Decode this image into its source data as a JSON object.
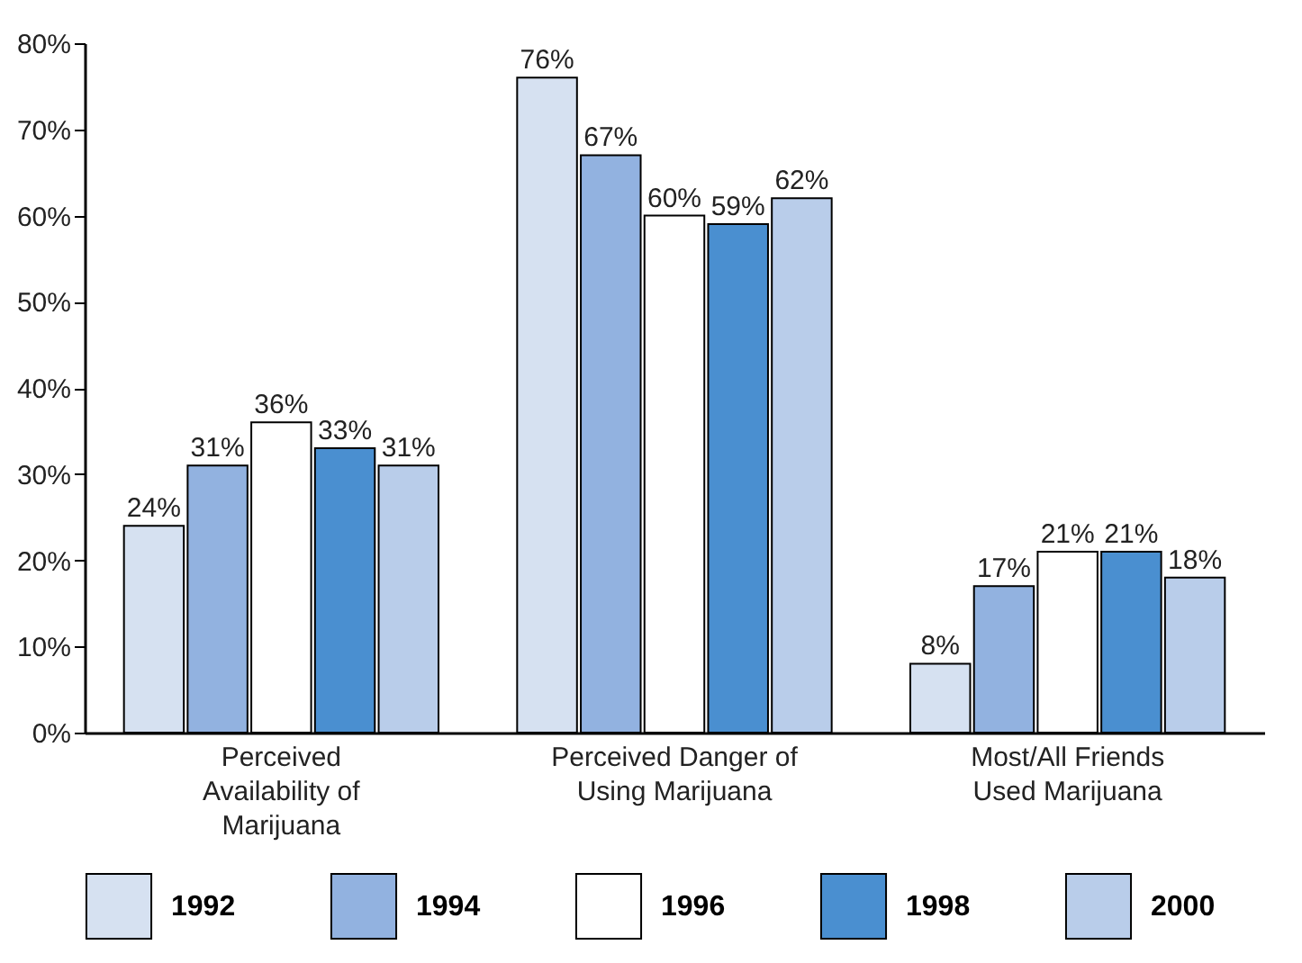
{
  "chart_data": {
    "type": "bar",
    "categories": [
      "Perceived Availability of Marijuana",
      "Perceived Danger of Using Marijuana",
      "Most/All Friends Used Marijuana"
    ],
    "series": [
      {
        "name": "1992",
        "color": "#d6e1f1",
        "values": [
          24,
          76,
          8
        ],
        "value_labels": [
          "24%",
          "76%",
          "8%"
        ]
      },
      {
        "name": "1994",
        "color": "#92b2e0",
        "values": [
          31,
          67,
          17
        ],
        "value_labels": [
          "31%",
          "67%",
          "17%"
        ]
      },
      {
        "name": "1996",
        "color": "#ffffff",
        "values": [
          36,
          60,
          21
        ],
        "value_labels": [
          "36%",
          "60%",
          "21%"
        ]
      },
      {
        "name": "1998",
        "color": "#4a8fd0",
        "values": [
          33,
          59,
          21
        ],
        "value_labels": [
          "33%",
          "59%",
          "21%"
        ]
      },
      {
        "name": "2000",
        "color": "#b9cdea",
        "values": [
          31,
          62,
          18
        ],
        "value_labels": [
          "31%",
          "62%",
          "18%"
        ]
      }
    ],
    "ylim": [
      0,
      80
    ],
    "yticks": [
      {
        "value": 0,
        "label": "0%"
      },
      {
        "value": 10,
        "label": "10%"
      },
      {
        "value": 20,
        "label": "20%"
      },
      {
        "value": 30,
        "label": "30%"
      },
      {
        "value": 40,
        "label": "40%"
      },
      {
        "value": 50,
        "label": "50%"
      },
      {
        "value": 60,
        "label": "60%"
      },
      {
        "value": 70,
        "label": "70%"
      },
      {
        "value": 80,
        "label": "80%"
      }
    ],
    "grid": false,
    "legend": "bottom"
  }
}
